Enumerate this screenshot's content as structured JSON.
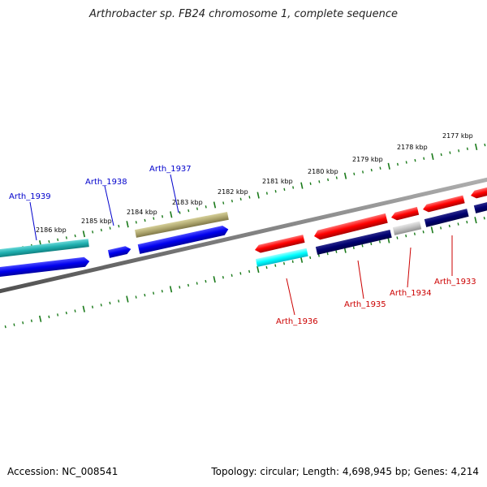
{
  "title": "Arthrobacter sp. FB24 chromosome 1, complete sequence",
  "footer": {
    "accession": "Accession: NC_008541",
    "summary": "Topology: circular; Length: 4,698,945 bp; Genes: 4,214"
  },
  "colors": {
    "forward_label": "#0000cc",
    "reverse_label": "#cc0000",
    "backbone": "#808080",
    "tick": "#1a7a1a"
  },
  "ruler": {
    "unit": "kbp",
    "labels": [
      "2177 kbp",
      "2178 kbp",
      "2179 kbp",
      "2180 kbp",
      "2181 kbp",
      "2182 kbp",
      "2183 kbp",
      "2184 kbp",
      "2185 kbp",
      "2186 kbp"
    ]
  },
  "forward_labels": [
    "Arth_1939",
    "Arth_1938",
    "Arth_1937"
  ],
  "reverse_labels": [
    "Arth_1936",
    "Arth_1935",
    "Arth_1934",
    "Arth_1933"
  ]
}
